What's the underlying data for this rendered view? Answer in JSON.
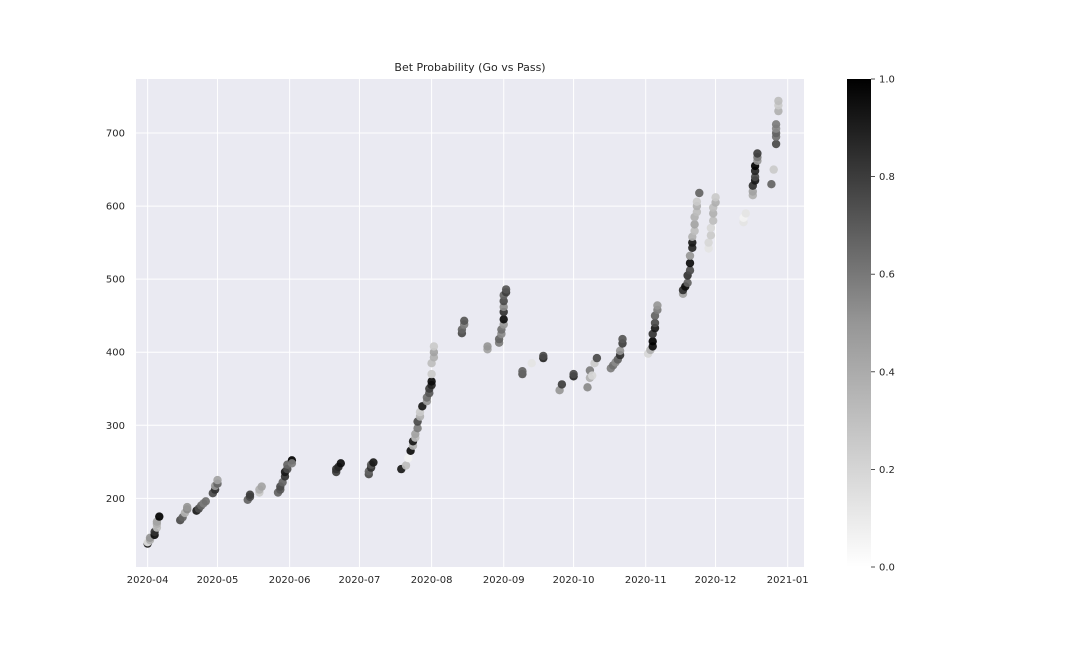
{
  "chart_data": {
    "type": "scatter",
    "title": "Bet Probability (Go vs Pass)",
    "xlabel": "",
    "ylabel": "",
    "x_axis_type": "date",
    "xlim": [
      "2020-03-27",
      "2021-01-08"
    ],
    "ylim": [
      106,
      774
    ],
    "x_ticks": [
      "2020-04-01",
      "2020-05-01",
      "2020-06-01",
      "2020-07-01",
      "2020-08-01",
      "2020-09-01",
      "2020-10-01",
      "2020-11-01",
      "2020-12-01",
      "2021-01-01"
    ],
    "x_tick_labels": [
      "2020-04",
      "2020-05",
      "2020-06",
      "2020-07",
      "2020-08",
      "2020-09",
      "2020-10",
      "2020-11",
      "2020-12",
      "2021-01"
    ],
    "y_ticks": [
      200,
      300,
      400,
      500,
      600,
      700
    ],
    "y_tick_labels": [
      "200",
      "300",
      "400",
      "500",
      "600",
      "700"
    ],
    "grid": true,
    "background": "#eaeaf2",
    "grid_color": "#ffffff",
    "colormap": "Greys",
    "colorbar": {
      "min": 0.0,
      "max": 1.0,
      "ticks": [
        0.0,
        0.2,
        0.4,
        0.6,
        0.8,
        1.0
      ],
      "tick_labels": [
        "0.0",
        "0.2",
        "0.4",
        "0.6",
        "0.8",
        "1.0"
      ]
    },
    "series": [
      {
        "points": [
          [
            "2020-04-01",
            138,
            0.9
          ],
          [
            "2020-04-01",
            140,
            0.1
          ],
          [
            "2020-04-02",
            143,
            0.3
          ],
          [
            "2020-04-02",
            146,
            0.4
          ],
          [
            "2020-04-04",
            150,
            0.95
          ],
          [
            "2020-04-04",
            154,
            0.8
          ],
          [
            "2020-04-05",
            160,
            0.25
          ],
          [
            "2020-04-05",
            165,
            0.3
          ],
          [
            "2020-04-05",
            168,
            0.35
          ],
          [
            "2020-04-06",
            175,
            1.0
          ],
          [
            "2020-04-15",
            170,
            0.7
          ],
          [
            "2020-04-16",
            174,
            0.6
          ],
          [
            "2020-04-17",
            180,
            0.3
          ],
          [
            "2020-04-18",
            185,
            0.45
          ],
          [
            "2020-04-18",
            188,
            0.4
          ],
          [
            "2020-04-22",
            183,
            0.9
          ],
          [
            "2020-04-23",
            186,
            0.7
          ],
          [
            "2020-04-24",
            190,
            0.6
          ],
          [
            "2020-04-25",
            193,
            0.5
          ],
          [
            "2020-04-26",
            196,
            0.55
          ],
          [
            "2020-04-29",
            207,
            0.7
          ],
          [
            "2020-04-30",
            212,
            0.8
          ],
          [
            "2020-04-30",
            217,
            0.4
          ],
          [
            "2020-05-01",
            220,
            0.6
          ],
          [
            "2020-05-01",
            225,
            0.35
          ],
          [
            "2020-05-14",
            198,
            0.6
          ],
          [
            "2020-05-15",
            202,
            0.7
          ],
          [
            "2020-05-15",
            205,
            0.75
          ],
          [
            "2020-05-19",
            208,
            0.2
          ],
          [
            "2020-05-19",
            212,
            0.3
          ],
          [
            "2020-05-20",
            216,
            0.35
          ],
          [
            "2020-05-27",
            208,
            0.6
          ],
          [
            "2020-05-28",
            212,
            0.65
          ],
          [
            "2020-05-28",
            216,
            0.7
          ],
          [
            "2020-05-29",
            222,
            0.6
          ],
          [
            "2020-05-30",
            230,
            0.8
          ],
          [
            "2020-05-30",
            236,
            0.9
          ],
          [
            "2020-05-31",
            240,
            0.7
          ],
          [
            "2020-05-31",
            246,
            0.6
          ],
          [
            "2020-06-02",
            252,
            1.0
          ],
          [
            "2020-06-02",
            248,
            0.5
          ],
          [
            "2020-06-21",
            236,
            0.75
          ],
          [
            "2020-06-21",
            240,
            0.8
          ],
          [
            "2020-06-22",
            243,
            0.85
          ],
          [
            "2020-06-23",
            248,
            0.95
          ],
          [
            "2020-07-05",
            233,
            0.7
          ],
          [
            "2020-07-05",
            237,
            0.6
          ],
          [
            "2020-07-06",
            242,
            0.8
          ],
          [
            "2020-07-06",
            246,
            0.65
          ],
          [
            "2020-07-07",
            249,
            0.9
          ],
          [
            "2020-07-19",
            240,
            0.9
          ],
          [
            "2020-07-21",
            245,
            0.25
          ],
          [
            "2020-07-22",
            255,
            0.05
          ],
          [
            "2020-07-23",
            265,
            0.95
          ],
          [
            "2020-07-24",
            272,
            0.3
          ],
          [
            "2020-07-24",
            278,
            0.9
          ],
          [
            "2020-07-25",
            283,
            0.25
          ],
          [
            "2020-07-25",
            288,
            0.35
          ],
          [
            "2020-07-26",
            296,
            0.5
          ],
          [
            "2020-07-26",
            305,
            0.7
          ],
          [
            "2020-07-27",
            312,
            0.3
          ],
          [
            "2020-07-27",
            318,
            0.2
          ],
          [
            "2020-07-28",
            326,
            0.9
          ],
          [
            "2020-07-30",
            333,
            0.4
          ],
          [
            "2020-07-30",
            338,
            0.55
          ],
          [
            "2020-07-31",
            344,
            0.65
          ],
          [
            "2020-07-31",
            350,
            0.75
          ],
          [
            "2020-08-01",
            355,
            0.85
          ],
          [
            "2020-08-01",
            360,
            0.95
          ],
          [
            "2020-08-01",
            370,
            0.2
          ],
          [
            "2020-08-01",
            385,
            0.25
          ],
          [
            "2020-08-02",
            393,
            0.3
          ],
          [
            "2020-08-02",
            400,
            0.35
          ],
          [
            "2020-08-02",
            408,
            0.2
          ],
          [
            "2020-08-14",
            426,
            0.7
          ],
          [
            "2020-08-14",
            431,
            0.6
          ],
          [
            "2020-08-15",
            438,
            0.5
          ],
          [
            "2020-08-15",
            443,
            0.65
          ],
          [
            "2020-08-25",
            404,
            0.35
          ],
          [
            "2020-08-25",
            408,
            0.4
          ],
          [
            "2020-08-30",
            413,
            0.5
          ],
          [
            "2020-08-30",
            418,
            0.6
          ],
          [
            "2020-08-31",
            425,
            0.45
          ],
          [
            "2020-08-31",
            431,
            0.55
          ],
          [
            "2020-09-01",
            438,
            0.4
          ],
          [
            "2020-09-01",
            445,
            0.95
          ],
          [
            "2020-09-01",
            455,
            0.8
          ],
          [
            "2020-09-01",
            462,
            0.45
          ],
          [
            "2020-09-01",
            470,
            0.7
          ],
          [
            "2020-09-01",
            478,
            0.6
          ],
          [
            "2020-09-02",
            482,
            0.75
          ],
          [
            "2020-09-02",
            486,
            0.65
          ],
          [
            "2020-09-09",
            370,
            0.65
          ],
          [
            "2020-09-09",
            374,
            0.6
          ],
          [
            "2020-09-13",
            385,
            0.1
          ],
          [
            "2020-09-18",
            392,
            0.85
          ],
          [
            "2020-09-18",
            395,
            0.7
          ],
          [
            "2020-09-25",
            348,
            0.4
          ],
          [
            "2020-09-26",
            356,
            0.75
          ],
          [
            "2020-10-01",
            367,
            0.85
          ],
          [
            "2020-10-01",
            370,
            0.7
          ],
          [
            "2020-10-07",
            352,
            0.45
          ],
          [
            "2020-10-08",
            365,
            0.3
          ],
          [
            "2020-10-08",
            375,
            0.5
          ],
          [
            "2020-10-09",
            368,
            0.15
          ],
          [
            "2020-10-10",
            385,
            0.2
          ],
          [
            "2020-10-11",
            392,
            0.7
          ],
          [
            "2020-10-17",
            378,
            0.5
          ],
          [
            "2020-10-18",
            382,
            0.55
          ],
          [
            "2020-10-19",
            386,
            0.45
          ],
          [
            "2020-10-20",
            390,
            0.6
          ],
          [
            "2020-10-21",
            396,
            0.8
          ],
          [
            "2020-10-21",
            402,
            0.4
          ],
          [
            "2020-10-22",
            412,
            0.75
          ],
          [
            "2020-10-22",
            418,
            0.65
          ],
          [
            "2020-11-02",
            398,
            0.15
          ],
          [
            "2020-11-03",
            403,
            0.3
          ],
          [
            "2020-11-04",
            408,
            0.95
          ],
          [
            "2020-11-04",
            415,
            1.0
          ],
          [
            "2020-11-04",
            425,
            0.8
          ],
          [
            "2020-11-05",
            433,
            0.9
          ],
          [
            "2020-11-05",
            440,
            0.7
          ],
          [
            "2020-11-05",
            450,
            0.6
          ],
          [
            "2020-11-06",
            458,
            0.5
          ],
          [
            "2020-11-06",
            464,
            0.4
          ],
          [
            "2020-11-17",
            480,
            0.35
          ],
          [
            "2020-11-17",
            485,
            0.8
          ],
          [
            "2020-11-18",
            490,
            0.95
          ],
          [
            "2020-11-19",
            495,
            0.6
          ],
          [
            "2020-11-19",
            505,
            0.8
          ],
          [
            "2020-11-20",
            512,
            0.7
          ],
          [
            "2020-11-20",
            522,
            0.95
          ],
          [
            "2020-11-20",
            532,
            0.4
          ],
          [
            "2020-11-21",
            543,
            0.85
          ],
          [
            "2020-11-21",
            550,
            0.9
          ],
          [
            "2020-11-21",
            558,
            0.3
          ],
          [
            "2020-11-22",
            566,
            0.25
          ],
          [
            "2020-11-22",
            575,
            0.35
          ],
          [
            "2020-11-22",
            585,
            0.3
          ],
          [
            "2020-11-23",
            592,
            0.25
          ],
          [
            "2020-11-23",
            600,
            0.3
          ],
          [
            "2020-11-23",
            606,
            0.2
          ],
          [
            "2020-11-24",
            618,
            0.6
          ],
          [
            "2020-11-28",
            542,
            0.1
          ],
          [
            "2020-11-28",
            550,
            0.15
          ],
          [
            "2020-11-29",
            560,
            0.2
          ],
          [
            "2020-11-29",
            570,
            0.15
          ],
          [
            "2020-11-30",
            580,
            0.25
          ],
          [
            "2020-11-30",
            590,
            0.3
          ],
          [
            "2020-11-30",
            598,
            0.25
          ],
          [
            "2020-12-01",
            605,
            0.3
          ],
          [
            "2020-12-01",
            612,
            0.2
          ],
          [
            "2020-12-13",
            578,
            0.1
          ],
          [
            "2020-12-13",
            584,
            0.05
          ],
          [
            "2020-12-14",
            590,
            0.1
          ],
          [
            "2020-12-17",
            615,
            0.3
          ],
          [
            "2020-12-17",
            620,
            0.35
          ],
          [
            "2020-12-17",
            628,
            0.8
          ],
          [
            "2020-12-18",
            635,
            0.9
          ],
          [
            "2020-12-18",
            640,
            0.7
          ],
          [
            "2020-12-18",
            648,
            0.85
          ],
          [
            "2020-12-18",
            655,
            1.0
          ],
          [
            "2020-12-19",
            662,
            0.4
          ],
          [
            "2020-12-19",
            667,
            0.5
          ],
          [
            "2020-12-19",
            672,
            0.75
          ],
          [
            "2020-12-25",
            630,
            0.6
          ],
          [
            "2020-12-26",
            650,
            0.2
          ],
          [
            "2020-12-27",
            685,
            0.7
          ],
          [
            "2020-12-27",
            695,
            0.55
          ],
          [
            "2020-12-27",
            700,
            0.6
          ],
          [
            "2020-12-27",
            706,
            0.45
          ],
          [
            "2020-12-27",
            712,
            0.5
          ],
          [
            "2020-12-28",
            730,
            0.3
          ],
          [
            "2020-12-28",
            738,
            0.2
          ],
          [
            "2020-12-28",
            744,
            0.25
          ]
        ]
      }
    ]
  }
}
